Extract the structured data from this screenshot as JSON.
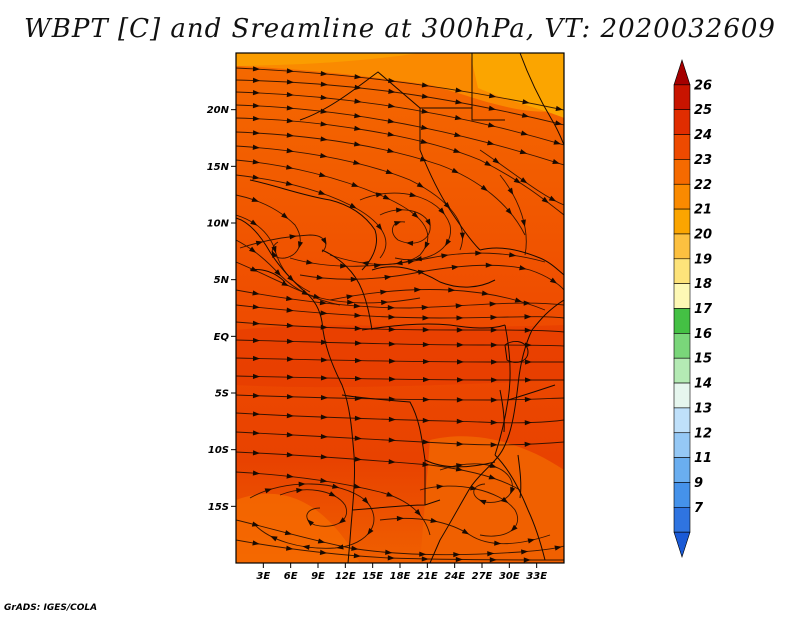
{
  "title": "WBPT [C] and Sreamline at 300hPa, VT: 2020032609",
  "credit": "GrADS: IGES/COLA",
  "chart_data": {
    "type": "map",
    "variable": "Wet-bulb potential temperature (WBPT) with streamlines",
    "level": "300hPa",
    "valid_time": "2020032609",
    "units": "C",
    "lon_range": [
      0,
      36
    ],
    "lat_range": [
      -20,
      25
    ],
    "x_ticks": [
      "3E",
      "6E",
      "9E",
      "12E",
      "15E",
      "18E",
      "21E",
      "24E",
      "27E",
      "30E",
      "33E"
    ],
    "x_tick_values": [
      3,
      6,
      9,
      12,
      15,
      18,
      21,
      24,
      27,
      30,
      33
    ],
    "y_ticks": [
      "20N",
      "15N",
      "10N",
      "5N",
      "EQ",
      "5S",
      "10S",
      "15S"
    ],
    "y_tick_values": [
      20,
      15,
      10,
      5,
      0,
      -5,
      -10,
      -15
    ],
    "colorbar": {
      "labels": [
        "26",
        "25",
        "24",
        "23",
        "22",
        "21",
        "20",
        "19",
        "18",
        "17",
        "16",
        "15",
        "14",
        "13",
        "12",
        "11",
        "9",
        "7"
      ],
      "colors": [
        "#a50000",
        "#c81400",
        "#e02d00",
        "#ee4a00",
        "#f56a00",
        "#fa8a00",
        "#fba500",
        "#fcc040",
        "#fde37a",
        "#fdf8b5",
        "#44c044",
        "#7ad67a",
        "#b4eab4",
        "#e6f6ee",
        "#bfe0fa",
        "#95c8f5",
        "#6aaef0",
        "#4592ea",
        "#2f74e0",
        "#1a5ad6"
      ],
      "extend": "both"
    }
  }
}
